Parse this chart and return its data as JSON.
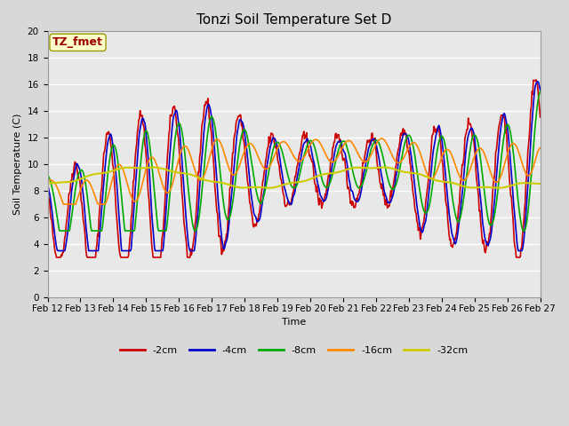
{
  "title": "Tonzi Soil Temperature Set D",
  "xlabel": "Time",
  "ylabel": "Soil Temperature (C)",
  "ylim": [
    0,
    20
  ],
  "annotation": "TZ_fmet",
  "fig_bg": "#d8d8d8",
  "ax_bg": "#e8e8e8",
  "grid_color": "#ffffff",
  "series": [
    {
      "label": "-2cm",
      "color": "#cc0000",
      "lw": 1.2
    },
    {
      "label": "-4cm",
      "color": "#0000cc",
      "lw": 1.2
    },
    {
      "label": "-8cm",
      "color": "#00aa00",
      "lw": 1.2
    },
    {
      "label": "-16cm",
      "color": "#ff8800",
      "lw": 1.2
    },
    {
      "label": "-32cm",
      "color": "#cccc00",
      "lw": 1.5
    }
  ],
  "xtick_labels": [
    "Feb 12",
    "Feb 13",
    "Feb 14",
    "Feb 15",
    "Feb 16",
    "Feb 17",
    "Feb 18",
    "Feb 19",
    "Feb 20",
    "Feb 21",
    "Feb 22",
    "Feb 23",
    "Feb 24",
    "Feb 25",
    "Feb 26",
    "Feb 27"
  ],
  "title_fontsize": 11,
  "label_fontsize": 8,
  "tick_fontsize": 7.5
}
